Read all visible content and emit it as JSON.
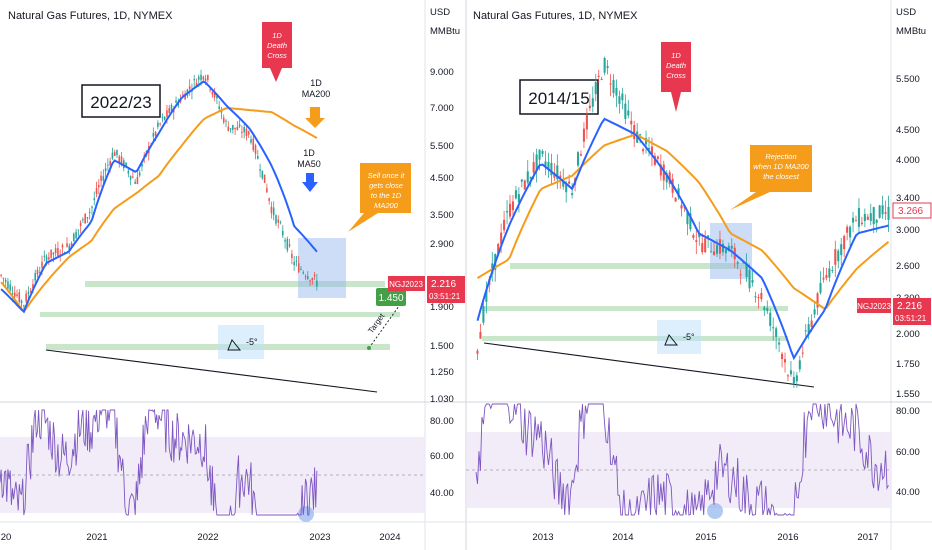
{
  "panels": [
    {
      "symbol": "Natural Gas Futures, 1D, NYMEX",
      "unit": "USD",
      "unit2": "MMBtu",
      "period_label": "2022/23",
      "price_ticks": [
        "9.000",
        "7.000",
        "5.500",
        "4.500",
        "3.500",
        "2.900",
        "2.300",
        "1.900",
        "1.500",
        "1.250",
        "1.030"
      ],
      "rsi_ticks": [
        "80.00",
        "60.00",
        "40.00"
      ],
      "x_ticks": [
        "20",
        "2021",
        "2022",
        "2023",
        "2024"
      ],
      "callouts": {
        "death_cross": "1D Death Cross",
        "ma200": "1D MA200",
        "ma50": "1D MA50",
        "note": "Sell once it gets close to the 1D MA200",
        "angle": "-5°",
        "target_value": "1.450",
        "target_text": "Target"
      },
      "price_badge": {
        "ticker": "NGJ2023",
        "price": "2.216",
        "countdown": "03:51:21"
      }
    },
    {
      "symbol": "Natural Gas Futures, 1D, NYMEX",
      "unit": "USD",
      "unit2": "MMBtu",
      "period_label": "2014/15",
      "price_ticks": [
        "5.500",
        "4.500",
        "4.000",
        "3.400",
        "3.000",
        "2.600",
        "2.300",
        "2.000",
        "1.750",
        "1.550"
      ],
      "rsi_ticks": [
        "80.00",
        "60.00",
        "40.00"
      ],
      "x_ticks": [
        "2013",
        "2014",
        "2015",
        "2016",
        "2017"
      ],
      "callouts": {
        "death_cross": "1D Death Cross",
        "note": "Rejection when 1D MA200 the closest",
        "angle": "-5°"
      },
      "last_value": "3.266",
      "price_badge": {
        "ticker": "NGJ2023",
        "price": "2.216",
        "countdown": "03:51:21"
      }
    }
  ],
  "colors": {
    "candle_up": "#26a69a",
    "candle_down": "#ef5350",
    "ma50": "#2962ff",
    "ma200": "#f59c1a",
    "rsi": "#7e57c2",
    "support": "#a5d6a7",
    "box": "#90b4f0",
    "death_cross": "#e8384f",
    "note": "#f59c1a",
    "target": "#43a047"
  },
  "chart_data": [
    {
      "type": "line",
      "title": "Natural Gas Futures, 1D, NYMEX",
      "x": [
        "2020-08",
        "2020-10",
        "2021-01",
        "2021-04",
        "2021-07",
        "2021-10",
        "2022-01",
        "2022-04",
        "2022-07",
        "2022-08",
        "2022-10",
        "2022-12",
        "2023-01",
        "2023-02",
        "2023-03"
      ],
      "series": [
        {
          "name": "Price",
          "values": [
            2.3,
            1.9,
            2.6,
            2.8,
            3.6,
            5.3,
            4.3,
            6.3,
            7.6,
            9.0,
            6.3,
            6.0,
            3.6,
            2.5,
            2.2
          ]
        },
        {
          "name": "MA50",
          "values": [
            2.1,
            1.8,
            2.5,
            2.7,
            3.3,
            5.0,
            4.6,
            6.0,
            7.6,
            8.5,
            7.2,
            6.2,
            4.8,
            3.2,
            2.7
          ]
        },
        {
          "name": "MA200",
          "values": [
            2.2,
            1.8,
            2.2,
            2.6,
            2.9,
            3.6,
            4.0,
            4.5,
            5.5,
            6.6,
            7.1,
            7.0,
            6.9,
            6.3,
            5.8
          ]
        }
      ],
      "support_levels": [
        2.3,
        1.9,
        1.5
      ],
      "target": 1.45,
      "last_price": 2.216,
      "rsi_range": [
        30,
        80
      ]
    },
    {
      "type": "line",
      "title": "Natural Gas Futures, 1D, NYMEX",
      "x": [
        "2012-04",
        "2012-10",
        "2013-04",
        "2013-10",
        "2014-02",
        "2014-06",
        "2014-10",
        "2015-01",
        "2015-06",
        "2015-10",
        "2016-03",
        "2016-06",
        "2016-10",
        "2017-01"
      ],
      "series": [
        {
          "name": "Price",
          "values": [
            1.9,
            3.3,
            4.1,
            3.6,
            6.0,
            4.5,
            3.8,
            2.9,
            2.8,
            2.3,
            1.6,
            2.5,
            3.2,
            3.26
          ]
        },
        {
          "name": "MA50",
          "values": [
            2.1,
            3.1,
            4.0,
            3.6,
            4.8,
            4.5,
            3.8,
            3.0,
            2.8,
            2.5,
            1.8,
            2.2,
            3.0,
            3.1
          ]
        },
        {
          "name": "MA200",
          "values": [
            2.5,
            2.7,
            3.6,
            3.8,
            4.3,
            4.5,
            4.2,
            3.7,
            3.0,
            2.8,
            2.4,
            2.2,
            2.6,
            2.9
          ]
        }
      ],
      "support_levels": [
        2.65,
        2.15,
        1.97
      ],
      "last_price": 3.266,
      "rsi_range": [
        30,
        80
      ]
    }
  ]
}
